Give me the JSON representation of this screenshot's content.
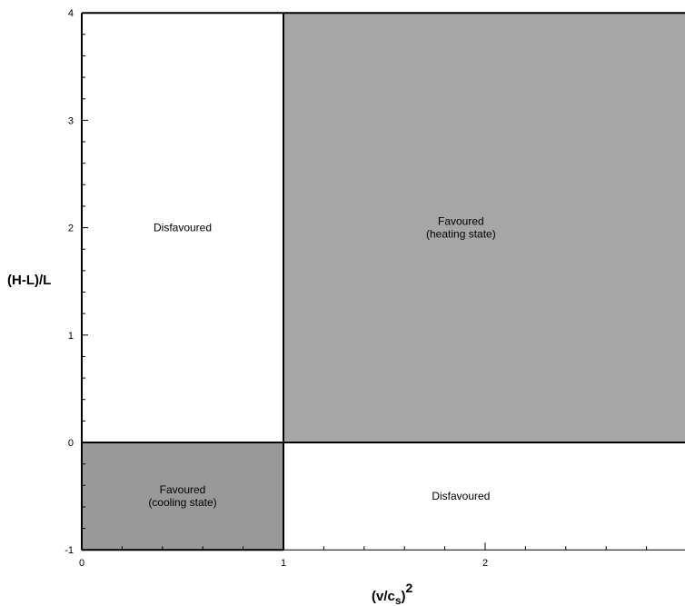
{
  "chart_data": {
    "type": "region",
    "xlabel_base": "(v/c",
    "xlabel_sub": "s",
    "xlabel_close": ")",
    "xlabel_sup": "2",
    "ylabel": "(H-L)/L",
    "xlim": [
      0,
      3
    ],
    "ylim": [
      -1,
      4
    ],
    "x_ticks": [
      0,
      1,
      2
    ],
    "x_tick_labels": [
      "0",
      "1",
      "2"
    ],
    "y_ticks": [
      -1,
      0,
      1,
      2,
      3,
      4
    ],
    "y_tick_labels": [
      "-1",
      "0",
      "1",
      "2",
      "3",
      "4"
    ],
    "x_minor_step": 0.2,
    "y_minor_step": 0.2,
    "regions": [
      {
        "x": [
          0,
          1
        ],
        "y": [
          0,
          4
        ],
        "shaded": false,
        "fill": "#ffffff",
        "label_lines": [
          "Disfavoured"
        ],
        "label_at": [
          0.5,
          2
        ]
      },
      {
        "x": [
          1,
          3
        ],
        "y": [
          0,
          4
        ],
        "shaded": true,
        "fill": "#a6a6a6",
        "label_lines": [
          "Favoured",
          "(heating state)"
        ],
        "label_at": [
          1.88,
          2
        ]
      },
      {
        "x": [
          0,
          1
        ],
        "y": [
          -1,
          0
        ],
        "shaded": true,
        "fill": "#999999",
        "label_lines": [
          "Favoured",
          "(cooling state)"
        ],
        "label_at": [
          0.5,
          -0.5
        ]
      },
      {
        "x": [
          1,
          3
        ],
        "y": [
          -1,
          0
        ],
        "shaded": false,
        "fill": "#ffffff",
        "label_lines": [
          "Disfavoured"
        ],
        "label_at": [
          1.88,
          -0.5
        ]
      }
    ]
  }
}
